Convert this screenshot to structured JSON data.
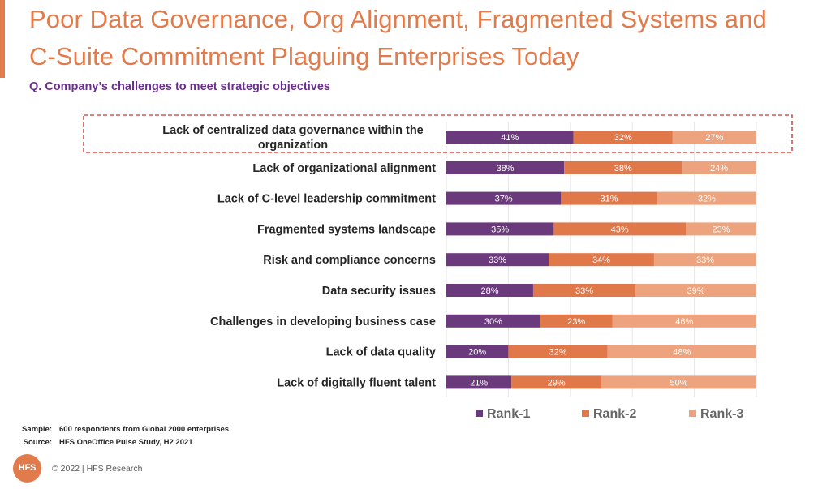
{
  "title": {
    "line1": "Poor Data Governance, Org Alignment, Fragmented Systems and",
    "line2": "C-Suite Commitment Plaguing Enterprises Today"
  },
  "subtitle": "Q. Company’s challenges to meet strategic objectives",
  "colors": {
    "accent": "#e27b4b",
    "subtitle": "#6a2f8e",
    "rank1": "#6b3a7c",
    "rank2": "#e0784a",
    "rank3": "#eda37d",
    "highlight_box": "#d9534f"
  },
  "chart_data": {
    "type": "bar",
    "orientation": "horizontal",
    "stacked": "100%",
    "categories": [
      [
        "Lack of centralized data governance within the",
        "organization"
      ],
      [
        "Lack of organizational alignment"
      ],
      [
        "Lack of C-level leadership commitment"
      ],
      [
        "Fragmented systems landscape"
      ],
      [
        "Risk and compliance concerns"
      ],
      [
        "Data security issues"
      ],
      [
        "Challenges in developing business case"
      ],
      [
        "Lack of data quality"
      ],
      [
        "Lack of digitally fluent talent"
      ]
    ],
    "series": [
      {
        "name": "Rank-1",
        "values": [
          41,
          38,
          37,
          35,
          33,
          28,
          30,
          20,
          21
        ]
      },
      {
        "name": "Rank-2",
        "values": [
          32,
          38,
          31,
          43,
          34,
          33,
          23,
          32,
          29
        ]
      },
      {
        "name": "Rank-3",
        "values": [
          27,
          24,
          32,
          23,
          33,
          39,
          46,
          48,
          50
        ]
      }
    ],
    "value_suffix": "%",
    "xlim": [
      0,
      100
    ],
    "grid": true,
    "legend_position": "bottom",
    "highlighted_category": 0
  },
  "footer": {
    "sample_key": "Sample:",
    "sample_value": "600 respondents from Global 2000 enterprises",
    "source_key": "Source:",
    "source_value": "HFS OneOffice Pulse Study, H2 2021"
  },
  "logo_text": "HFS",
  "copyright": "© 2022 | HFS Research"
}
